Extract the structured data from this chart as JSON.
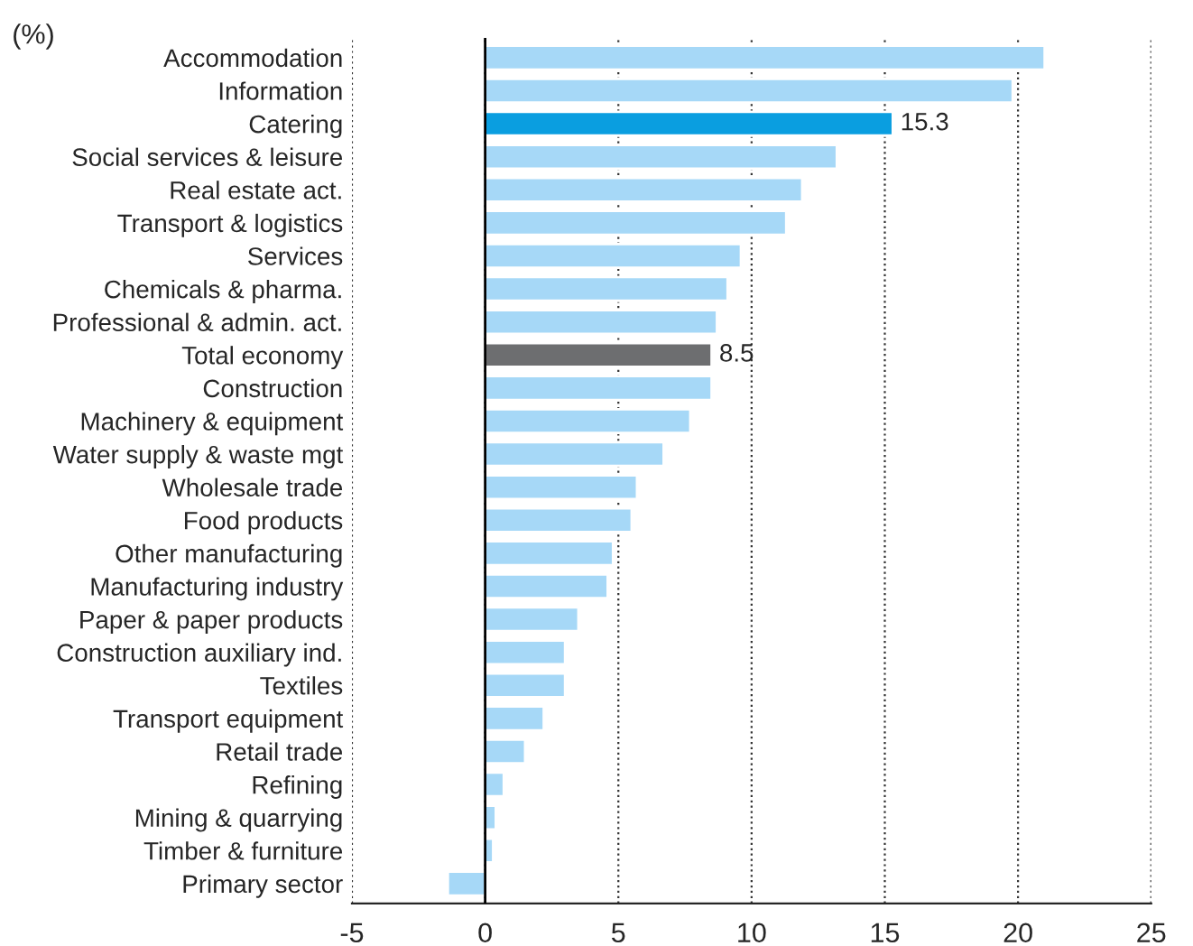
{
  "chart_data": {
    "type": "bar",
    "orientation": "horizontal",
    "categories": [
      "Accommodation",
      "Information",
      "Catering",
      "Social services & leisure",
      "Real estate act.",
      "Transport & logistics",
      "Services",
      "Chemicals & pharma.",
      "Professional & admin. act.",
      "Total economy",
      "Construction",
      "Machinery & equipment",
      "Water supply & waste mgt",
      "Wholesale trade",
      "Food products",
      "Other manufacturing",
      "Manufacturing industry",
      "Paper & paper products",
      "Construction auxiliary ind.",
      "Textiles",
      "Transport equipment",
      "Retail trade",
      "Refining",
      "Mining & quarrying",
      "Timber & furniture",
      "Primary sector"
    ],
    "values": [
      21.0,
      19.8,
      15.3,
      13.2,
      11.9,
      11.3,
      9.6,
      9.1,
      8.7,
      8.5,
      8.5,
      7.7,
      6.7,
      5.7,
      5.5,
      4.8,
      4.6,
      3.5,
      3.0,
      3.0,
      2.2,
      1.5,
      0.7,
      0.4,
      0.3,
      -1.4
    ],
    "colors": [
      "#a6d8f7",
      "#a6d8f7",
      "#0a9ee0",
      "#a6d8f7",
      "#a6d8f7",
      "#a6d8f7",
      "#a6d8f7",
      "#a6d8f7",
      "#a6d8f7",
      "#6d6e70",
      "#a6d8f7",
      "#a6d8f7",
      "#a6d8f7",
      "#a6d8f7",
      "#a6d8f7",
      "#a6d8f7",
      "#a6d8f7",
      "#a6d8f7",
      "#a6d8f7",
      "#a6d8f7",
      "#a6d8f7",
      "#a6d8f7",
      "#a6d8f7",
      "#a6d8f7",
      "#a6d8f7",
      "#a6d8f7"
    ],
    "value_labels": [
      null,
      null,
      "15.3",
      null,
      null,
      null,
      null,
      null,
      null,
      "8.5",
      null,
      null,
      null,
      null,
      null,
      null,
      null,
      null,
      null,
      null,
      null,
      null,
      null,
      null,
      null,
      null
    ],
    "xlim": [
      -5,
      25
    ],
    "xticks": [
      -5,
      0,
      5,
      10,
      15,
      20,
      25
    ],
    "grid": "x",
    "ref_lines": [
      {
        "axis": "x",
        "value": 0,
        "color": "#000000",
        "line_style": "solid"
      }
    ],
    "annotations": [
      "(%)"
    ]
  }
}
